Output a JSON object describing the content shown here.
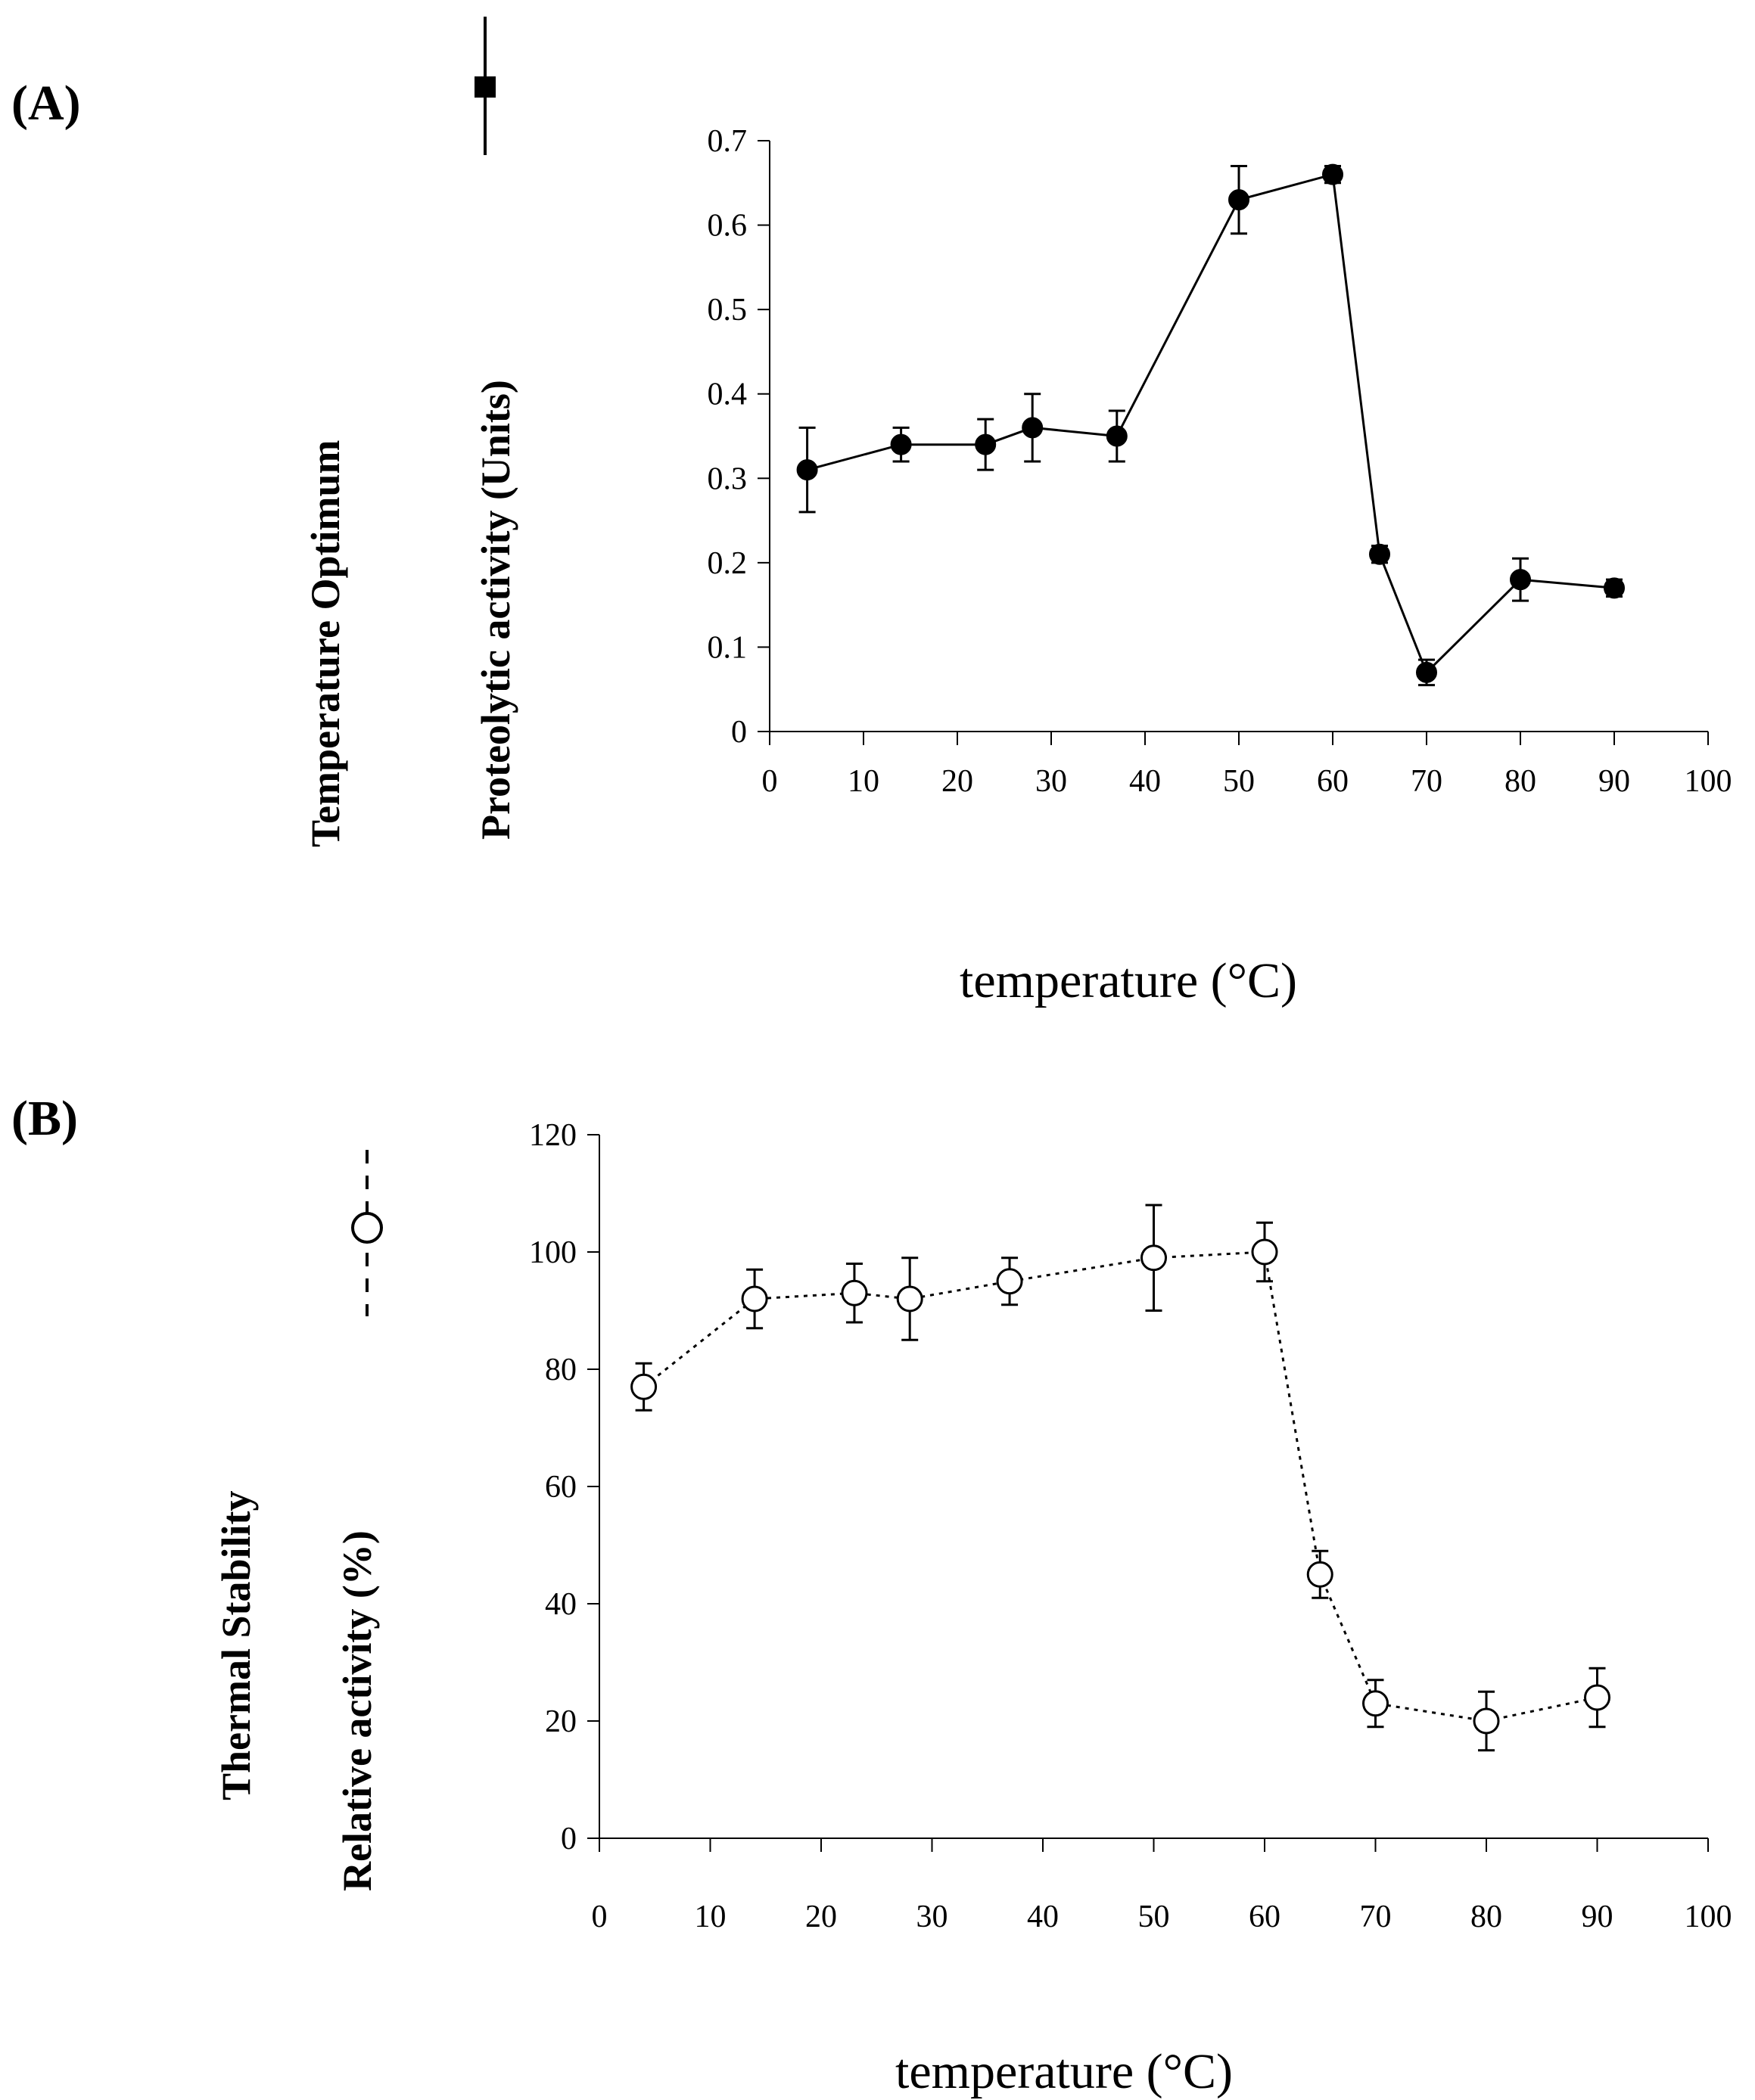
{
  "chart_data": [
    {
      "panel": "(A)",
      "type": "line",
      "label": "Temperature Optimum",
      "ylabel": "Proteolytic activity (Units)",
      "xlabel": "temperature (°C)",
      "xlim": [
        0,
        100
      ],
      "ylim": [
        0,
        0.7
      ],
      "xticks": [
        0,
        10,
        20,
        30,
        40,
        50,
        60,
        70,
        80,
        90,
        100
      ],
      "yticks": [
        0,
        0.1,
        0.2,
        0.3,
        0.4,
        0.5,
        0.6,
        0.7
      ],
      "grid": false,
      "marker": "filled-circle",
      "line_style": "solid",
      "series": [
        {
          "x": [
            4,
            14,
            23,
            28,
            37,
            50,
            60,
            65,
            70,
            80,
            90
          ],
          "y": [
            0.31,
            0.34,
            0.34,
            0.36,
            0.35,
            0.63,
            0.66,
            0.21,
            0.07,
            0.18,
            0.17
          ],
          "error": [
            0.05,
            0.02,
            0.03,
            0.04,
            0.03,
            0.04,
            0.01,
            0.01,
            0.015,
            0.025,
            0.01
          ]
        }
      ]
    },
    {
      "panel": "(B)",
      "type": "line",
      "label": "Thermal Stability",
      "ylabel": "Relative activity (%)",
      "xlabel": "temperature (°C)",
      "xlim": [
        0,
        100
      ],
      "ylim": [
        0,
        120
      ],
      "xticks": [
        0,
        10,
        20,
        30,
        40,
        50,
        60,
        70,
        80,
        90,
        100
      ],
      "yticks": [
        0,
        20,
        40,
        60,
        80,
        100,
        120
      ],
      "grid": false,
      "marker": "open-circle",
      "line_style": "dotted",
      "series": [
        {
          "x": [
            4,
            14,
            23,
            28,
            37,
            50,
            60,
            65,
            70,
            80,
            90
          ],
          "y": [
            77,
            92,
            93,
            92,
            95,
            99,
            100,
            45,
            23,
            20,
            24
          ],
          "error": [
            4,
            5,
            5,
            7,
            4,
            9,
            5,
            4,
            4,
            5,
            5
          ]
        }
      ]
    }
  ]
}
